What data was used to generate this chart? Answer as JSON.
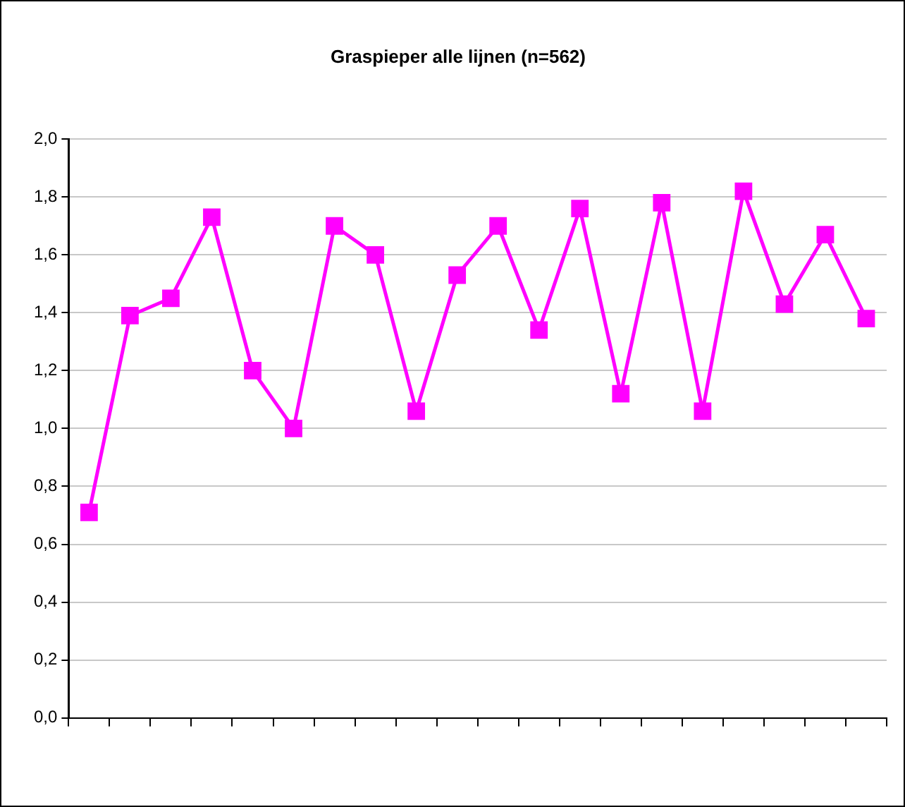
{
  "chart_data": {
    "type": "line",
    "title": "Graspieper alle lijnen (n=562)",
    "categories": [
      null,
      null,
      null,
      null,
      null,
      null,
      null,
      null,
      null,
      null,
      null,
      null,
      null,
      null,
      null,
      null,
      null,
      null,
      null,
      null
    ],
    "series": [
      {
        "color": "#ff00ff",
        "values": [
          0.71,
          1.39,
          1.45,
          1.73,
          1.2,
          1.0,
          1.7,
          1.6,
          1.06,
          1.53,
          1.7,
          1.34,
          1.76,
          1.12,
          1.78,
          1.06,
          1.82,
          1.43,
          1.67,
          1.38
        ]
      }
    ],
    "ylim": [
      0,
      2
    ],
    "yticks": [
      {
        "value": 0,
        "label": "0,0"
      },
      {
        "value": 0.2,
        "label": "0,2"
      },
      {
        "value": 0.4,
        "label": "0,4"
      },
      {
        "value": 0.6,
        "label": "0,6"
      },
      {
        "value": 0.8,
        "label": "0,8"
      },
      {
        "value": 1,
        "label": "1,0"
      },
      {
        "value": 1.2,
        "label": "1,2"
      },
      {
        "value": 1.4,
        "label": "1,4"
      },
      {
        "value": 1.6,
        "label": "1,6"
      },
      {
        "value": 1.8,
        "label": "1,8"
      },
      {
        "value": 2,
        "label": "2,0"
      }
    ],
    "grid": "y",
    "legend": false,
    "marker": "square",
    "line_style": "solid"
  }
}
